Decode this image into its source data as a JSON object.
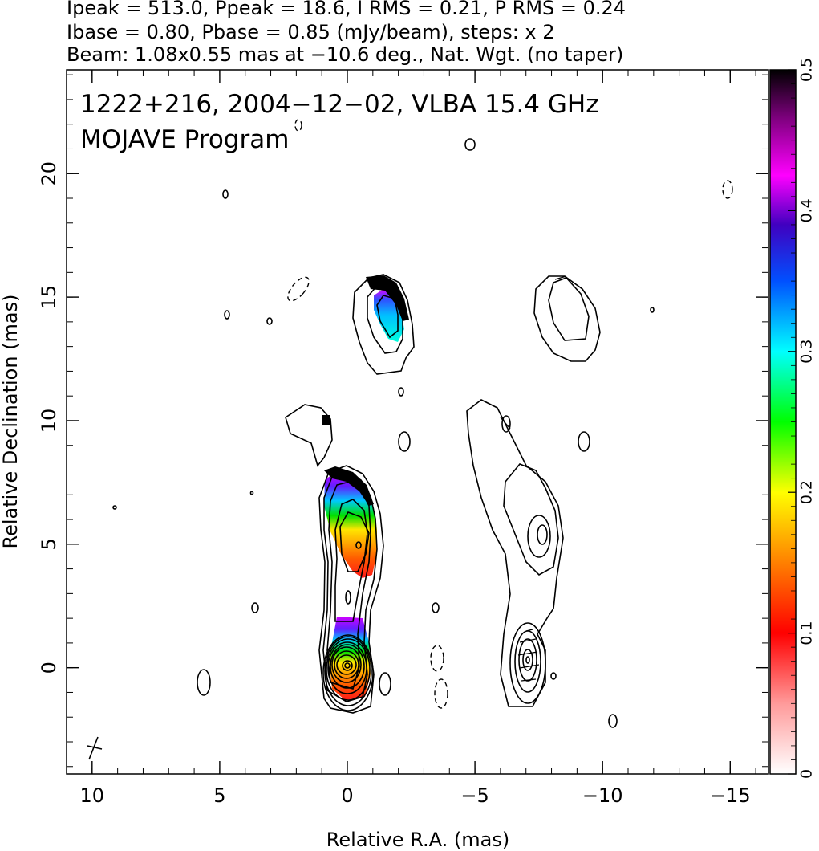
{
  "header": {
    "line1": "Ipeak = 513.0, Ppeak = 18.6, I RMS = 0.21, P RMS = 0.24",
    "line2": "Ibase = 0.80, Pbase = 0.85 (mJy/beam), steps: x 2",
    "line3": "Beam: 1.08x0.55 mas at −10.6 deg., Nat. Wgt. (no taper)"
  },
  "annotation": {
    "line1": "1222+216, 2004−12−02, VLBA 15.4 GHz",
    "line2": "MOJAVE Program"
  },
  "chart_data": {
    "type": "heatmap",
    "xlabel": "Relative R.A. (mas)",
    "ylabel": "Relative Declination (mas)",
    "xlim": [
      11,
      -16.5
    ],
    "ylim": [
      -4.3,
      24.2
    ],
    "x_ticks": [
      {
        "value": 10,
        "label": "10"
      },
      {
        "value": 5,
        "label": "5"
      },
      {
        "value": 0,
        "label": "0"
      },
      {
        "value": -5,
        "label": "−5"
      },
      {
        "value": -10,
        "label": "−10"
      },
      {
        "value": -15,
        "label": "−15"
      }
    ],
    "y_ticks": [
      {
        "value": 0,
        "label": "0"
      },
      {
        "value": 5,
        "label": "5"
      },
      {
        "value": 10,
        "label": "10"
      },
      {
        "value": 15,
        "label": "15"
      },
      {
        "value": 20,
        "label": "20"
      }
    ],
    "intensity_panel": {
      "core": [
        0,
        0
      ],
      "jet_knots": [
        [
          -0.5,
          5.2
        ],
        [
          -1.7,
          13.8
        ]
      ]
    },
    "polarization_panel": {
      "core": [
        -7,
        0.3
      ],
      "jet_knots": [
        [
          -7.4,
          5.1
        ],
        [
          -8.5,
          13.5
        ]
      ]
    },
    "colorbar": {
      "range": [
        0,
        0.5
      ],
      "ticks": [
        {
          "value": 0,
          "label": "0"
        },
        {
          "value": 0.1,
          "label": "0.1"
        },
        {
          "value": 0.2,
          "label": "0.2"
        },
        {
          "value": 0.3,
          "label": "0.3"
        },
        {
          "value": 0.4,
          "label": "0.4"
        },
        {
          "value": 0.5,
          "label": "0.5"
        }
      ],
      "colors": [
        "#ffffff",
        "#ff0000",
        "#ff8000",
        "#ffff00",
        "#00ff00",
        "#00ffff",
        "#0000ff",
        "#ff00ff",
        "#000000"
      ]
    }
  }
}
